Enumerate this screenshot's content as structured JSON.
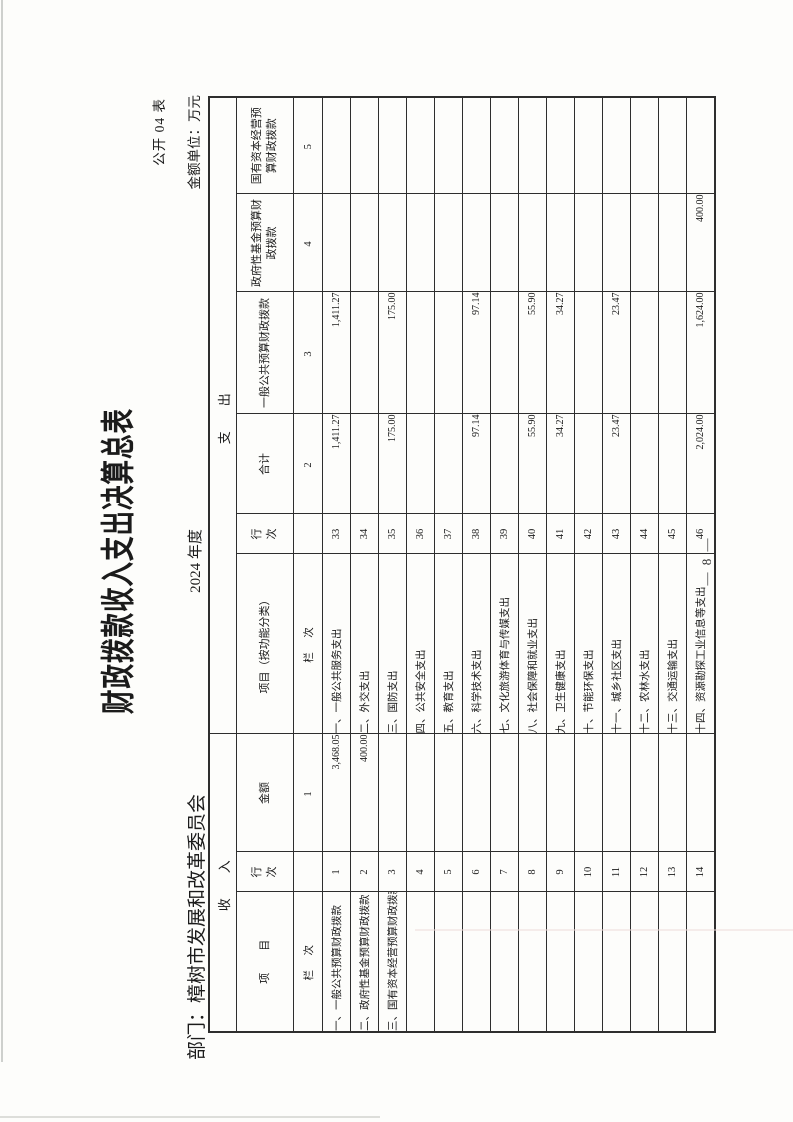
{
  "form_code": "公开 04 表",
  "unit_note": "金额单位：万元",
  "title": "财政拨款收入支出决算总表",
  "department": "部门：樟树市发展和改革委员会",
  "fiscal_year": "2024 年度",
  "page_number": "— 8 —",
  "colors": {
    "ink": "#1b1b1b",
    "grid": "#2e2e2e",
    "paper": "#fdfdfb"
  },
  "table": {
    "headers": {
      "income_section": "收　入",
      "expense_section": "支　出",
      "income_item": "项　　目",
      "row_no": "行\n次",
      "amount": "金额",
      "expense_item": "项目（按功能分类）",
      "total": "合计",
      "general_budget": "一般公共预算财政拨款",
      "gov_fund": "政府性基金预算财政拨款",
      "state_capital": "国有资本经营预算财政拨款",
      "col_label": "栏　次",
      "col_numbers": {
        "amount": "1",
        "total": "2",
        "general": "3",
        "gov_fund": "4",
        "state_capital": "5"
      }
    },
    "rows": [
      [
        "一、一般公共预算财政拨款",
        "1",
        "3,468.05",
        "一、一般公共服务支出",
        "33",
        "1,411.27",
        "1,411.27",
        "",
        ""
      ],
      [
        "二、政府性基金预算财政拨款",
        "2",
        "400.00",
        "二、外交支出",
        "34",
        "",
        "",
        "",
        ""
      ],
      [
        "三、国有资本经营预算财政拨款",
        "3",
        "",
        "三、国防支出",
        "35",
        "175.00",
        "175.00",
        "",
        ""
      ],
      [
        "",
        "4",
        "",
        "四、公共安全支出",
        "36",
        "",
        "",
        "",
        ""
      ],
      [
        "",
        "5",
        "",
        "五、教育支出",
        "37",
        "",
        "",
        "",
        ""
      ],
      [
        "",
        "6",
        "",
        "六、科学技术支出",
        "38",
        "97.14",
        "97.14",
        "",
        ""
      ],
      [
        "",
        "7",
        "",
        "七、文化旅游体育与传媒支出",
        "39",
        "",
        "",
        "",
        ""
      ],
      [
        "",
        "8",
        "",
        "八、社会保障和就业支出",
        "40",
        "55.90",
        "55.90",
        "",
        ""
      ],
      [
        "",
        "9",
        "",
        "九、卫生健康支出",
        "41",
        "34.27",
        "34.27",
        "",
        ""
      ],
      [
        "",
        "10",
        "",
        "十、节能环保支出",
        "42",
        "",
        "",
        "",
        ""
      ],
      [
        "",
        "11",
        "",
        "十一、城乡社区支出",
        "43",
        "23.47",
        "23.47",
        "",
        ""
      ],
      [
        "",
        "12",
        "",
        "十二、农林水支出",
        "44",
        "",
        "",
        "",
        ""
      ],
      [
        "",
        "13",
        "",
        "十三、交通运输支出",
        "45",
        "",
        "",
        "",
        ""
      ],
      [
        "",
        "14",
        "",
        "十四、资源勘探工业信息等支出",
        "46",
        "2,024.00",
        "1,624.00",
        "400.00",
        ""
      ]
    ]
  }
}
